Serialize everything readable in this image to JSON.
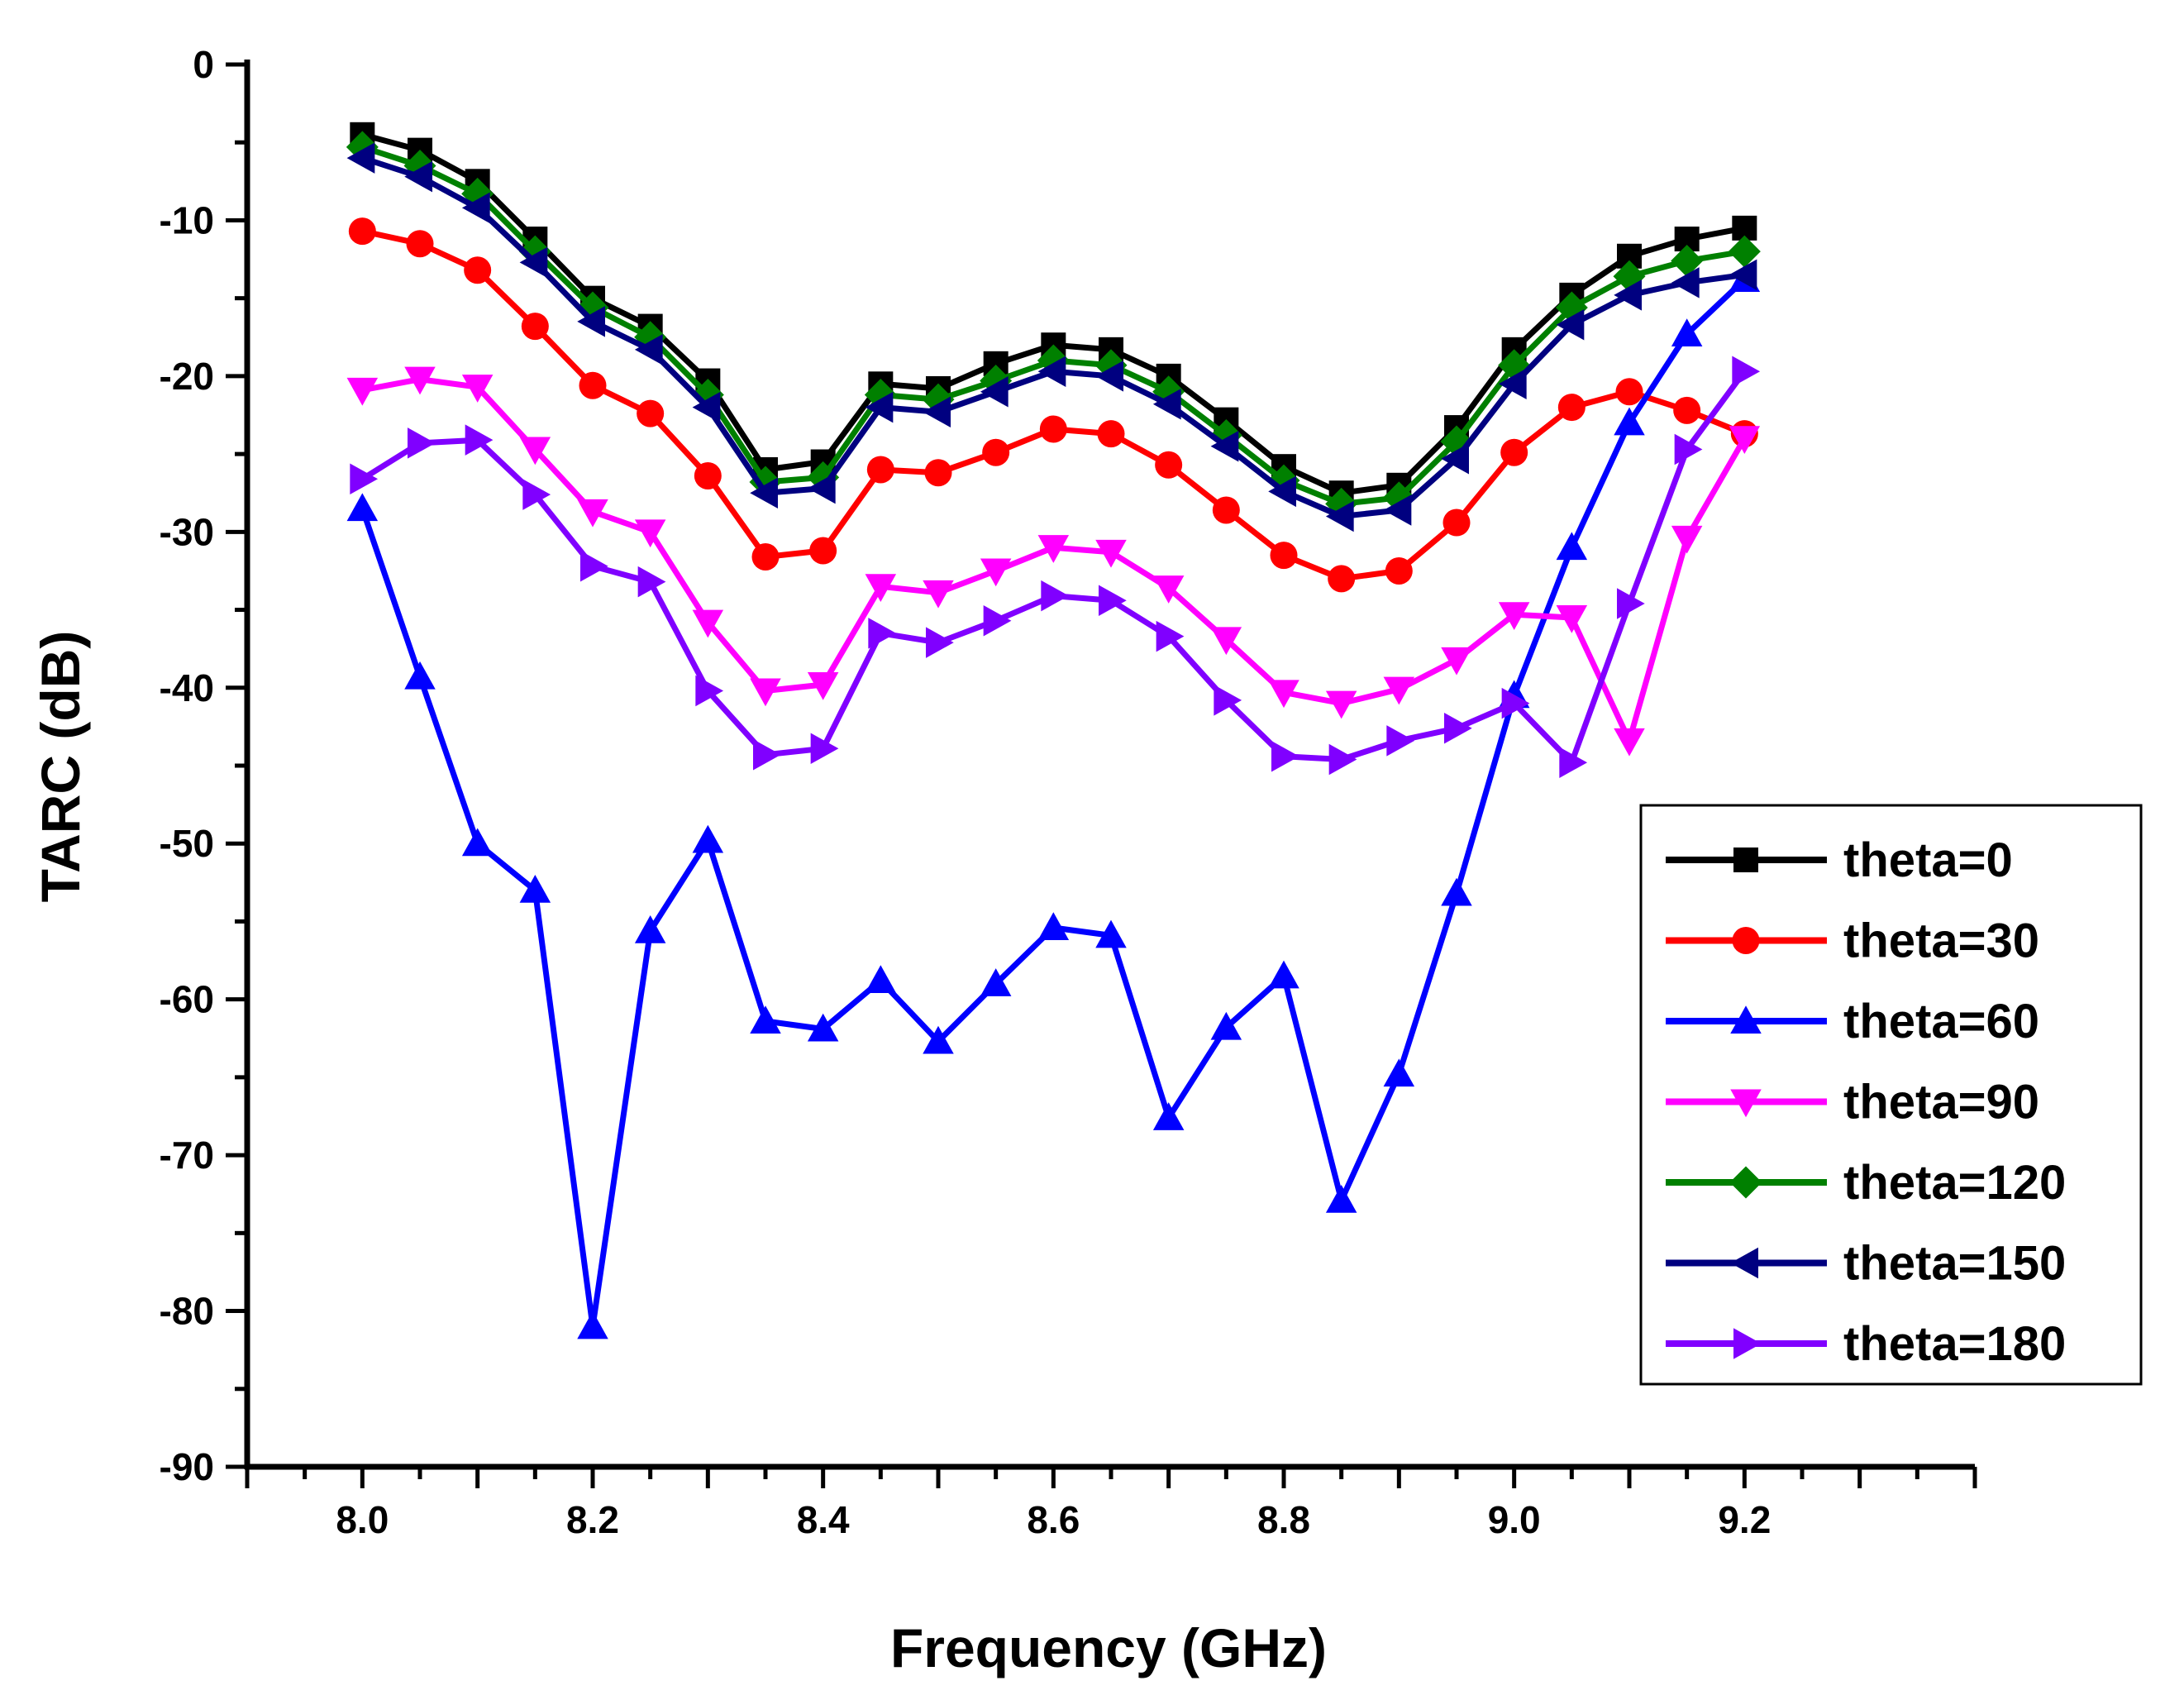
{
  "chart_data": {
    "type": "line",
    "title": "",
    "xlabel": "Frequency (GHz)",
    "ylabel": "TARC (dB)",
    "xlim": [
      7.9,
      9.4
    ],
    "ylim": [
      -90,
      0
    ],
    "xticks": [
      "8.0",
      "8.2",
      "8.4",
      "8.6",
      "8.8",
      "9.0",
      "9.2"
    ],
    "yticks": [
      "0",
      "-10",
      "-20",
      "-30",
      "-40",
      "-50",
      "-60",
      "-70",
      "-80",
      "-90"
    ],
    "grid": false,
    "legend_position": "right",
    "x": [
      8.0,
      8.05,
      8.1,
      8.15,
      8.2,
      8.25,
      8.3,
      8.35,
      8.4,
      8.45,
      8.5,
      8.55,
      8.6,
      8.65,
      8.7,
      8.75,
      8.8,
      8.85,
      8.9,
      8.95,
      9.0,
      9.05,
      9.1,
      9.15,
      9.2
    ],
    "series": [
      {
        "name": "theta=0",
        "color": "#000000",
        "marker": "square",
        "values": [
          -4.5,
          -5.5,
          -7.5,
          -11.2,
          -15.0,
          -16.8,
          -20.3,
          -26.0,
          -25.5,
          -20.5,
          -20.8,
          -19.2,
          -18.0,
          -18.3,
          -20.0,
          -22.8,
          -25.8,
          -27.5,
          -27.0,
          -23.3,
          -18.3,
          -14.8,
          -12.3,
          -11.2,
          -10.5
        ]
      },
      {
        "name": "theta=30",
        "color": "#ff0000",
        "marker": "circle",
        "values": [
          -10.7,
          -11.5,
          -13.2,
          -16.8,
          -20.6,
          -22.4,
          -26.4,
          -31.6,
          -31.2,
          -26.0,
          -26.2,
          -24.9,
          -23.4,
          -23.7,
          -25.7,
          -28.6,
          -31.5,
          -33.0,
          -32.5,
          -29.4,
          -24.9,
          -22.0,
          -21.0,
          -22.2,
          -23.7
        ]
      },
      {
        "name": "theta=60",
        "color": "#0000ff",
        "marker": "triangle-up",
        "values": [
          -28.5,
          -39.3,
          -50.0,
          -53.0,
          -81.0,
          -55.6,
          -49.8,
          -61.4,
          -61.9,
          -58.8,
          -62.7,
          -59.0,
          -55.4,
          -55.9,
          -67.6,
          -61.8,
          -58.5,
          -72.9,
          -64.8,
          -53.2,
          -40.5,
          -31.0,
          -23.0,
          -17.3,
          -13.8
        ]
      },
      {
        "name": "theta=90",
        "color": "#ff00ff",
        "marker": "triangle-down",
        "values": [
          -20.9,
          -20.2,
          -20.7,
          -24.7,
          -28.7,
          -30.0,
          -35.8,
          -40.2,
          -39.8,
          -33.5,
          -33.9,
          -32.5,
          -31.0,
          -31.3,
          -33.6,
          -36.9,
          -40.3,
          -41.0,
          -40.1,
          -38.2,
          -35.3,
          -35.5,
          -43.4,
          -30.4,
          -24.0
        ]
      },
      {
        "name": "theta=120",
        "color": "#008000",
        "marker": "diamond",
        "values": [
          -5.3,
          -6.5,
          -8.3,
          -12.0,
          -15.6,
          -17.5,
          -21.2,
          -26.8,
          -26.5,
          -21.2,
          -21.5,
          -20.3,
          -19.0,
          -19.3,
          -21.0,
          -23.8,
          -26.7,
          -28.2,
          -27.8,
          -24.2,
          -19.3,
          -15.6,
          -13.6,
          -12.6,
          -12.0
        ]
      },
      {
        "name": "theta=150",
        "color": "#000080",
        "marker": "triangle-left",
        "values": [
          -6.0,
          -7.2,
          -9.2,
          -12.7,
          -16.5,
          -18.3,
          -22.0,
          -27.5,
          -27.2,
          -22.0,
          -22.3,
          -21.0,
          -19.7,
          -20.0,
          -21.8,
          -24.5,
          -27.4,
          -29.0,
          -28.6,
          -25.3,
          -20.5,
          -16.7,
          -14.8,
          -14.0,
          -13.5
        ]
      },
      {
        "name": "theta=180",
        "color": "#8000ff",
        "marker": "triangle-right",
        "values": [
          -26.6,
          -24.3,
          -24.1,
          -27.6,
          -32.2,
          -33.2,
          -40.2,
          -44.3,
          -43.9,
          -36.5,
          -37.1,
          -35.7,
          -34.1,
          -34.4,
          -36.7,
          -40.8,
          -44.4,
          -44.6,
          -43.4,
          -42.6,
          -41.0,
          -44.8,
          -34.6,
          -24.7,
          -19.7
        ]
      }
    ]
  }
}
